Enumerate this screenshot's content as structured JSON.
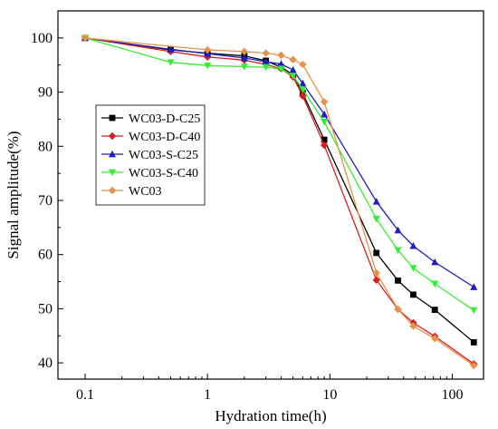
{
  "chart_data": {
    "type": "line",
    "xlabel": "Hydration time(h)",
    "ylabel": "Signal amplitude(%)",
    "xscale": "log",
    "xlim": [
      0.06,
      180
    ],
    "ylim": [
      37,
      105
    ],
    "xticks": [
      0.1,
      1,
      10,
      100
    ],
    "xtick_labels": [
      "0.1",
      "1",
      "10",
      "100"
    ],
    "yticks": [
      40,
      50,
      60,
      70,
      80,
      90,
      100
    ],
    "ytick_labels": [
      "40",
      "50",
      "60",
      "70",
      "80",
      "90",
      "100"
    ],
    "grid": false,
    "legend_position": "center-left",
    "series": [
      {
        "name": "WC03-D-C25",
        "color": "#000000",
        "marker": "square",
        "x": [
          0.1,
          0.5,
          1,
          2,
          3,
          4,
          5,
          6,
          9,
          24,
          36,
          48,
          72,
          150
        ],
        "y": [
          100,
          97.8,
          97.2,
          96.7,
          95.8,
          94.6,
          93.2,
          89.8,
          81.2,
          60.3,
          55.2,
          52.6,
          49.8,
          43.8
        ]
      },
      {
        "name": "WC03-D-C40",
        "color": "#d62020",
        "marker": "diamond",
        "x": [
          0.1,
          0.5,
          1,
          2,
          3,
          4,
          5,
          6,
          9,
          24,
          36,
          48,
          72,
          150
        ],
        "y": [
          100,
          97.5,
          96.5,
          95.9,
          95.1,
          94.3,
          92.8,
          89.3,
          80.2,
          55.3,
          49.9,
          47.4,
          44.9,
          39.8
        ]
      },
      {
        "name": "WC03-S-C25",
        "color": "#1f1fbf",
        "marker": "triangle-up",
        "x": [
          0.1,
          0.5,
          1,
          2,
          3,
          4,
          5,
          6,
          9,
          24,
          36,
          48,
          72,
          150
        ],
        "y": [
          100,
          97.9,
          97.1,
          96.3,
          95.6,
          95.2,
          94.1,
          91.6,
          85.9,
          69.8,
          64.5,
          61.6,
          58.6,
          54.0
        ]
      },
      {
        "name": "WC03-S-C40",
        "color": "#33ee33",
        "marker": "triangle-down",
        "x": [
          0.1,
          0.5,
          1,
          2,
          3,
          4,
          5,
          6,
          9,
          24,
          36,
          48,
          72,
          150
        ],
        "y": [
          100,
          95.5,
          94.9,
          94.7,
          94.6,
          94.3,
          93.0,
          90.5,
          84.5,
          66.6,
          60.8,
          57.5,
          54.6,
          49.7
        ]
      },
      {
        "name": "WC03",
        "color": "#e8914a",
        "marker": "diamond",
        "x": [
          0.1,
          1,
          2,
          3,
          4,
          5,
          6,
          9,
          24,
          36,
          48,
          72,
          150
        ],
        "y": [
          100,
          97.8,
          97.5,
          97.2,
          96.8,
          96.0,
          95.1,
          88.2,
          56.6,
          49.9,
          46.8,
          44.5,
          39.5
        ]
      }
    ]
  }
}
